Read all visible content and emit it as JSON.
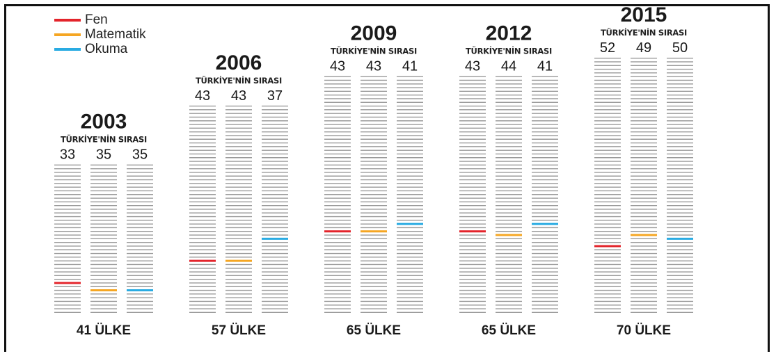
{
  "chart_data": {
    "type": "bar",
    "legend": [
      {
        "name": "Fen",
        "color": "#e3242b"
      },
      {
        "name": "Matematik",
        "color": "#f5a623"
      },
      {
        "name": "Okuma",
        "color": "#29abe2"
      }
    ],
    "legend_position": "top-left",
    "rank_header": "TÜRKİYE'NİN SIRASI",
    "groups": [
      {
        "year": "2003",
        "countries": 41,
        "country_label": "41 ÜLKE",
        "ranks": [
          33,
          35,
          35
        ]
      },
      {
        "year": "2006",
        "countries": 57,
        "country_label": "57 ÜLKE",
        "ranks": [
          43,
          43,
          37
        ]
      },
      {
        "year": "2009",
        "countries": 65,
        "country_label": "65 ÜLKE",
        "ranks": [
          43,
          43,
          41
        ]
      },
      {
        "year": "2012",
        "countries": 65,
        "country_label": "65 ÜLKE",
        "ranks": [
          43,
          44,
          41
        ]
      },
      {
        "year": "2015",
        "countries": 70,
        "country_label": "70 ÜLKE",
        "ranks": [
          52,
          49,
          50
        ]
      }
    ]
  }
}
